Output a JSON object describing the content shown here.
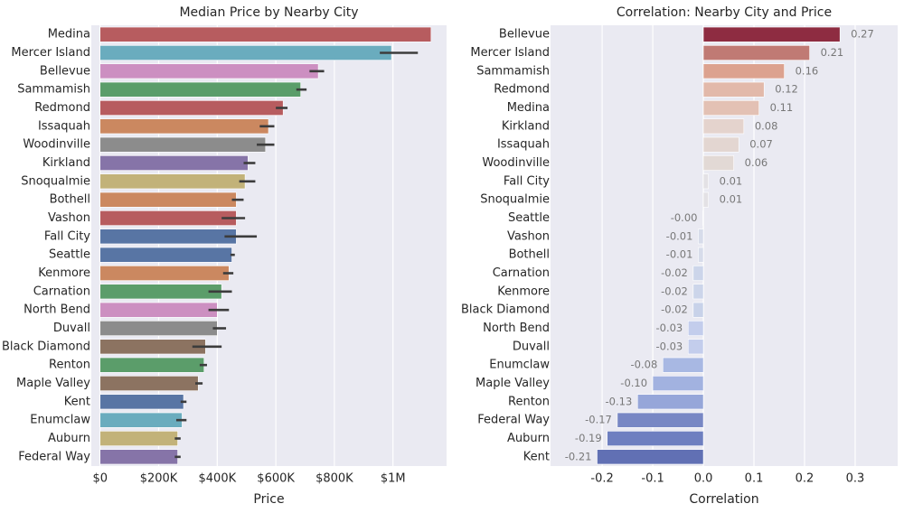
{
  "chart_data": [
    {
      "type": "bar",
      "orientation": "horizontal",
      "title": "Median Price by Nearby City",
      "xlabel": "Price",
      "categories": [
        "Medina",
        "Mercer Island",
        "Bellevue",
        "Sammamish",
        "Redmond",
        "Issaquah",
        "Woodinville",
        "Kirkland",
        "Snoqualmie",
        "Bothell",
        "Vashon",
        "Fall City",
        "Seattle",
        "Kenmore",
        "Carnation",
        "North Bend",
        "Duvall",
        "Black Diamond",
        "Renton",
        "Maple Valley",
        "Kent",
        "Enumclaw",
        "Auburn",
        "Federal Way"
      ],
      "values": [
        1130000,
        995000,
        745000,
        685000,
        625000,
        575000,
        565000,
        505000,
        495000,
        465000,
        465000,
        465000,
        450000,
        440000,
        415000,
        400000,
        400000,
        360000,
        355000,
        335000,
        285000,
        280000,
        265000,
        265000
      ],
      "ci_low": [
        null,
        955000,
        715000,
        670000,
        600000,
        545000,
        535000,
        490000,
        475000,
        450000,
        415000,
        425000,
        445000,
        420000,
        370000,
        370000,
        385000,
        315000,
        340000,
        325000,
        275000,
        260000,
        255000,
        255000
      ],
      "ci_high": [
        null,
        1085000,
        765000,
        705000,
        640000,
        595000,
        595000,
        530000,
        530000,
        490000,
        495000,
        535000,
        460000,
        455000,
        450000,
        440000,
        430000,
        415000,
        365000,
        350000,
        295000,
        295000,
        275000,
        275000
      ],
      "colors": [
        "#b75c5f",
        "#6aacbe",
        "#cc8fc1",
        "#5b9d6a",
        "#b75c5f",
        "#cb8860",
        "#8c8c8c",
        "#8674a8",
        "#c2b279",
        "#cb8860",
        "#b75c5f",
        "#5875a4",
        "#5875a4",
        "#cb8860",
        "#5b9d6a",
        "#cc8fc1",
        "#8c8c8c",
        "#8c7361",
        "#5b9d6a",
        "#8c7361",
        "#5875a4",
        "#6aacbe",
        "#c2b279",
        "#8674a8"
      ],
      "xlim": [
        -30000,
        1183000
      ],
      "xticks": [
        {
          "value": 0,
          "label": "$0"
        },
        {
          "value": 200000,
          "label": "$200K"
        },
        {
          "value": 400000,
          "label": "$400K"
        },
        {
          "value": 600000,
          "label": "$600K"
        },
        {
          "value": 800000,
          "label": "$800K"
        },
        {
          "value": 1000000,
          "label": "$1M"
        }
      ],
      "grid": true
    },
    {
      "type": "bar",
      "orientation": "horizontal",
      "title": "Correlation: Nearby City and Price",
      "xlabel": "Correlation",
      "categories": [
        "Bellevue",
        "Mercer Island",
        "Sammamish",
        "Redmond",
        "Medina",
        "Kirkland",
        "Issaquah",
        "Woodinville",
        "Fall City",
        "Snoqualmie",
        "Seattle",
        "Vashon",
        "Bothell",
        "Carnation",
        "Kenmore",
        "Black Diamond",
        "North Bend",
        "Duvall",
        "Enumclaw",
        "Maple Valley",
        "Renton",
        "Federal Way",
        "Auburn",
        "Kent"
      ],
      "values": [
        0.27,
        0.21,
        0.16,
        0.12,
        0.11,
        0.08,
        0.07,
        0.06,
        0.01,
        0.01,
        -0.001,
        -0.01,
        -0.01,
        -0.02,
        -0.02,
        -0.02,
        -0.03,
        -0.03,
        -0.08,
        -0.1,
        -0.13,
        -0.17,
        -0.19,
        -0.21
      ],
      "value_labels": [
        "0.27",
        "0.21",
        "0.16",
        "0.12",
        "0.11",
        "0.08",
        "0.07",
        "0.06",
        "0.01",
        "0.01",
        "-0.00",
        "-0.01",
        "-0.01",
        "-0.02",
        "-0.02",
        "-0.02",
        "-0.03",
        "-0.03",
        "-0.08",
        "-0.10",
        "-0.13",
        "-0.17",
        "-0.19",
        "-0.21"
      ],
      "colors": [
        "#8e2c41",
        "#c07a74",
        "#dca28f",
        "#e2b9aa",
        "#e3c1b4",
        "#e4d3cd",
        "#e3d6d1",
        "#e2d9d5",
        "#e3e1e5",
        "#e3e1e5",
        "#dde1ec",
        "#d7dcea",
        "#d7dcea",
        "#ccd5ea",
        "#ccd5ea",
        "#c8d2e9",
        "#c3cdec",
        "#c3cdec",
        "#a8b8e3",
        "#a2b2e0",
        "#96a6d9",
        "#7887c4",
        "#6e7fc0",
        "#6170b4"
      ],
      "xlim": [
        -0.302,
        0.384
      ],
      "xticks": [
        -0.2,
        -0.1,
        {
          "value": 0,
          "label": "0.0"
        },
        0.1,
        0.2,
        0.3
      ],
      "grid": true
    }
  ]
}
